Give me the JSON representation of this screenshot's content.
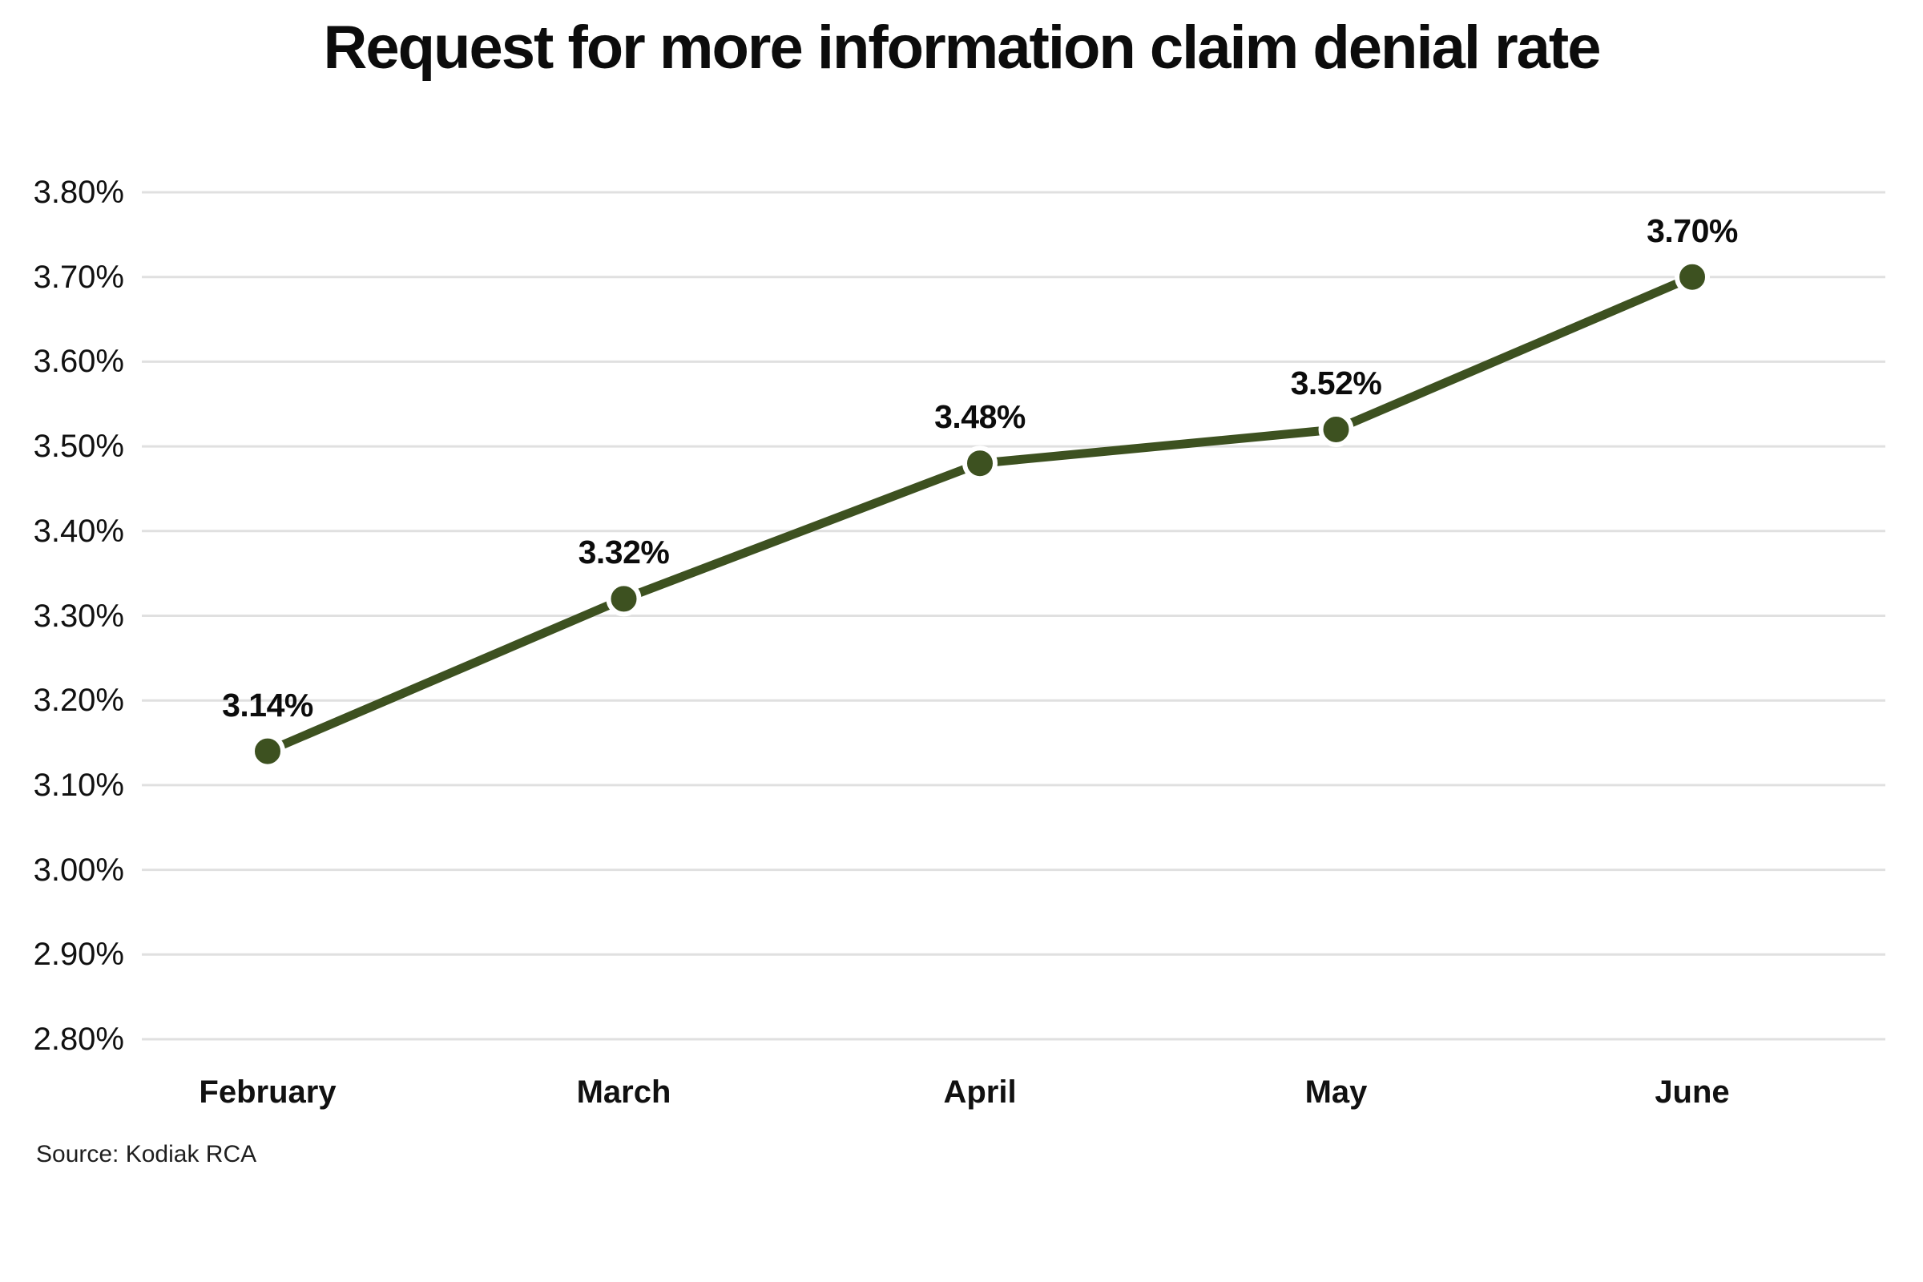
{
  "source": "Source: Kodiak RCA",
  "chart_data": {
    "type": "line",
    "title": "Request for more information claim denial rate",
    "categories": [
      "February",
      "March",
      "April",
      "May",
      "June"
    ],
    "values": [
      3.14,
      3.32,
      3.48,
      3.52,
      3.7
    ],
    "point_labels": [
      "3.14%",
      "3.32%",
      "3.48%",
      "3.52%",
      "3.70%"
    ],
    "y_ticks": [
      {
        "label": "3.80%",
        "value": 3.8
      },
      {
        "label": "3.70%",
        "value": 3.7
      },
      {
        "label": "3.60%",
        "value": 3.6
      },
      {
        "label": "3.50%",
        "value": 3.5
      },
      {
        "label": "3.40%",
        "value": 3.4
      },
      {
        "label": "3.30%",
        "value": 3.3
      },
      {
        "label": "3.20%",
        "value": 3.2
      },
      {
        "label": "3.10%",
        "value": 3.1
      },
      {
        "label": "3.00%",
        "value": 3.0
      },
      {
        "label": "2.90%",
        "value": 2.9
      },
      {
        "label": "2.80%",
        "value": 2.8
      }
    ],
    "ylim": [
      2.8,
      3.8
    ],
    "xlabel": "",
    "ylabel": "",
    "grid": "horizontal",
    "legend": "none",
    "line_color": "#3d5120",
    "point_halo_color": "#ffffff",
    "gridline_color": "#e0e0e0",
    "text_color": "#111111",
    "background_color": "#ffffff"
  }
}
